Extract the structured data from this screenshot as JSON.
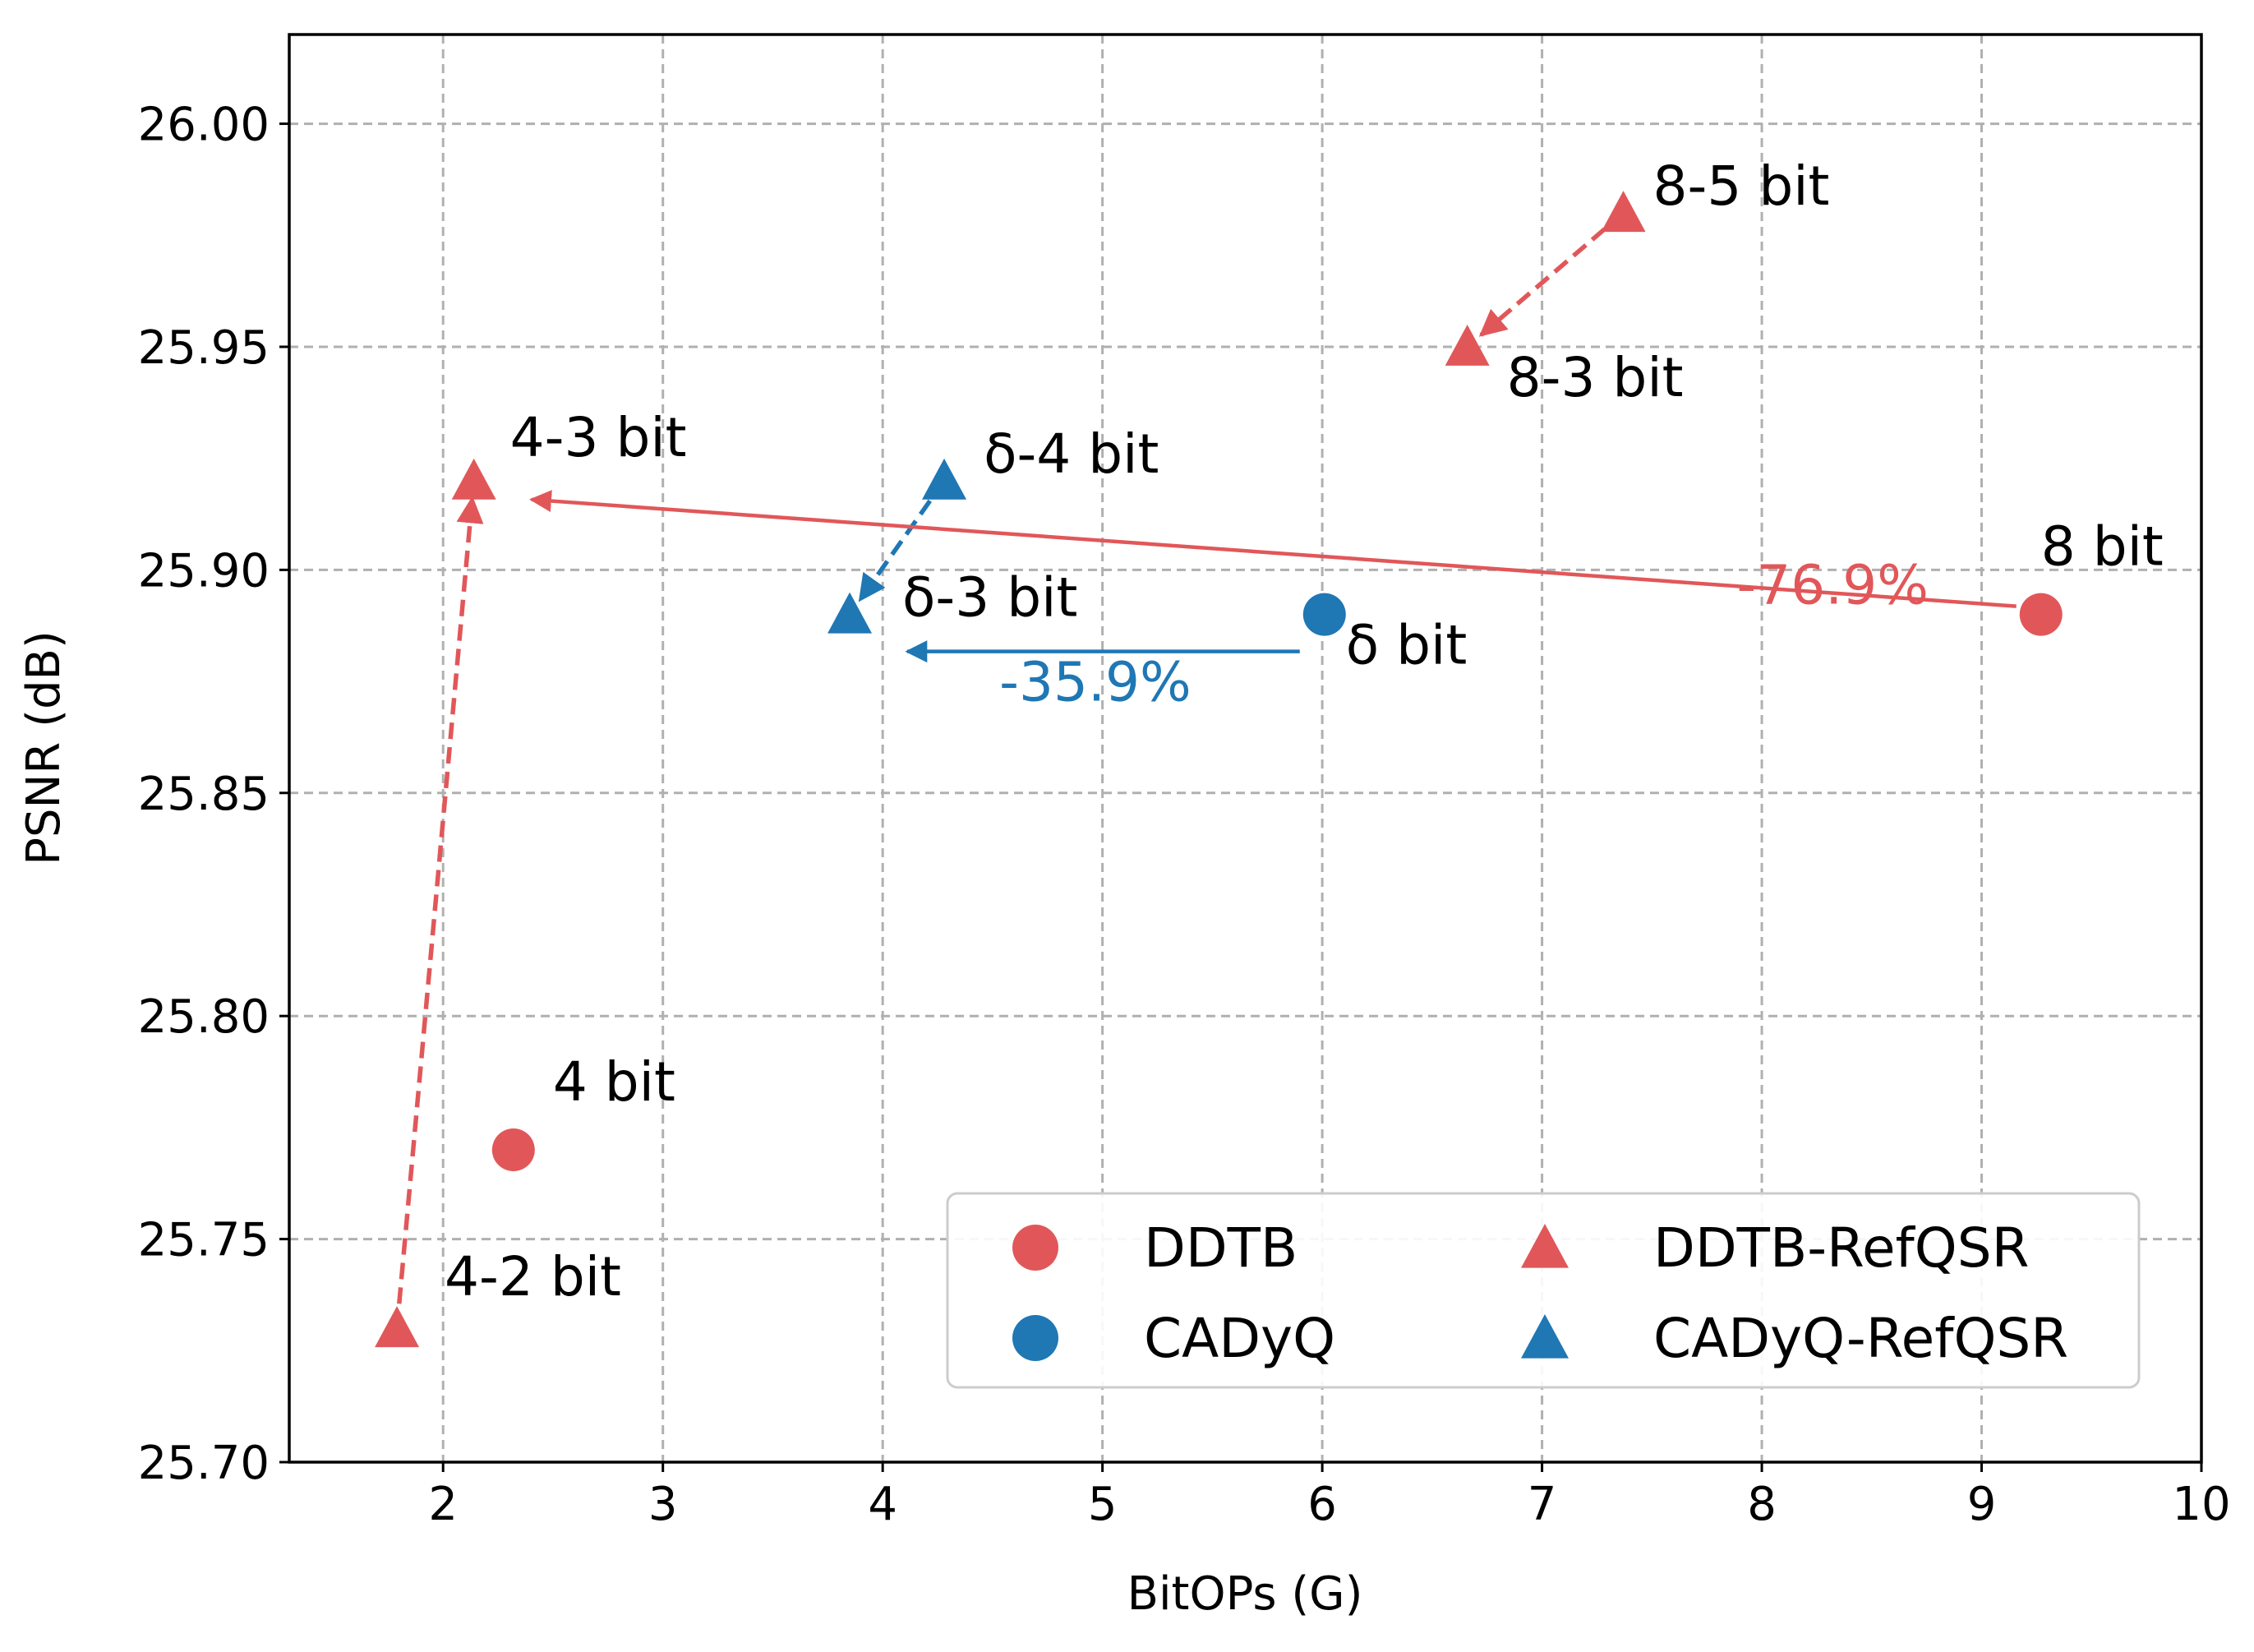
{
  "chart_data": {
    "type": "scatter",
    "xlabel": "BitOPs (G)",
    "ylabel": "PSNR (dB)",
    "xlim": [
      1.3,
      10
    ],
    "ylim": [
      25.7,
      26.02
    ],
    "grid": true,
    "x_ticks": [
      2,
      3,
      4,
      5,
      6,
      7,
      8,
      9,
      10
    ],
    "y_ticks": [
      25.7,
      25.75,
      25.8,
      25.85,
      25.9,
      25.95,
      26.0
    ],
    "x_tick_labels": [
      "2",
      "3",
      "4",
      "5",
      "6",
      "7",
      "8",
      "9",
      "10"
    ],
    "y_tick_labels": [
      "25.70",
      "25.75",
      "25.80",
      "25.85",
      "25.90",
      "25.95",
      "26.00"
    ],
    "colors": {
      "ddtb": "#e15759",
      "cadyq": "#1f77b4"
    },
    "series": [
      {
        "name": "DDTB",
        "marker": "circle",
        "color": "#e15759",
        "points": [
          {
            "x": 2.32,
            "y": 25.77,
            "label": "4 bit"
          },
          {
            "x": 9.27,
            "y": 25.89,
            "label": "8 bit"
          }
        ]
      },
      {
        "name": "CADyQ",
        "marker": "circle",
        "color": "#1f77b4",
        "points": [
          {
            "x": 6.01,
            "y": 25.89,
            "label": "δ bit"
          }
        ]
      },
      {
        "name": "DDTB-RefQSR",
        "marker": "triangle",
        "color": "#e15759",
        "points": [
          {
            "x": 1.79,
            "y": 25.73,
            "label": "4-2 bit"
          },
          {
            "x": 2.14,
            "y": 25.92,
            "label": "4-3 bit"
          },
          {
            "x": 6.66,
            "y": 25.95,
            "label": "8-3 bit"
          },
          {
            "x": 7.37,
            "y": 25.98,
            "label": "8-5 bit"
          }
        ]
      },
      {
        "name": "CADyQ-RefQSR",
        "marker": "triangle",
        "color": "#1f77b4",
        "points": [
          {
            "x": 3.85,
            "y": 25.89,
            "label": "δ-3 bit"
          },
          {
            "x": 4.28,
            "y": 25.92,
            "label": "δ-4 bit"
          }
        ]
      }
    ],
    "dashed_arrows": [
      {
        "from": [
          1.79,
          25.73
        ],
        "to": [
          2.14,
          25.92
        ],
        "color": "#e15759"
      },
      {
        "from": [
          7.37,
          25.98
        ],
        "to": [
          6.66,
          25.95
        ],
        "color": "#e15759"
      },
      {
        "from": [
          4.28,
          25.92
        ],
        "to": [
          3.85,
          25.89
        ],
        "color": "#1f77b4"
      }
    ],
    "reduction_arrows": [
      {
        "from": [
          9.27,
          25.89
        ],
        "to": [
          2.14,
          25.92
        ],
        "label": "-76.9%",
        "color": "#e15759"
      },
      {
        "from": [
          6.01,
          25.89
        ],
        "to": [
          3.85,
          25.89
        ],
        "label": "-35.9%",
        "color": "#1f77b4"
      }
    ],
    "legend": {
      "position": "lower-right",
      "ncols": 2,
      "entries": [
        {
          "label": "DDTB",
          "marker": "circle",
          "color": "#e15759"
        },
        {
          "label": "DDTB-RefQSR",
          "marker": "triangle",
          "color": "#e15759"
        },
        {
          "label": "CADyQ",
          "marker": "circle",
          "color": "#1f77b4"
        },
        {
          "label": "CADyQ-RefQSR",
          "marker": "triangle",
          "color": "#1f77b4"
        }
      ]
    }
  }
}
